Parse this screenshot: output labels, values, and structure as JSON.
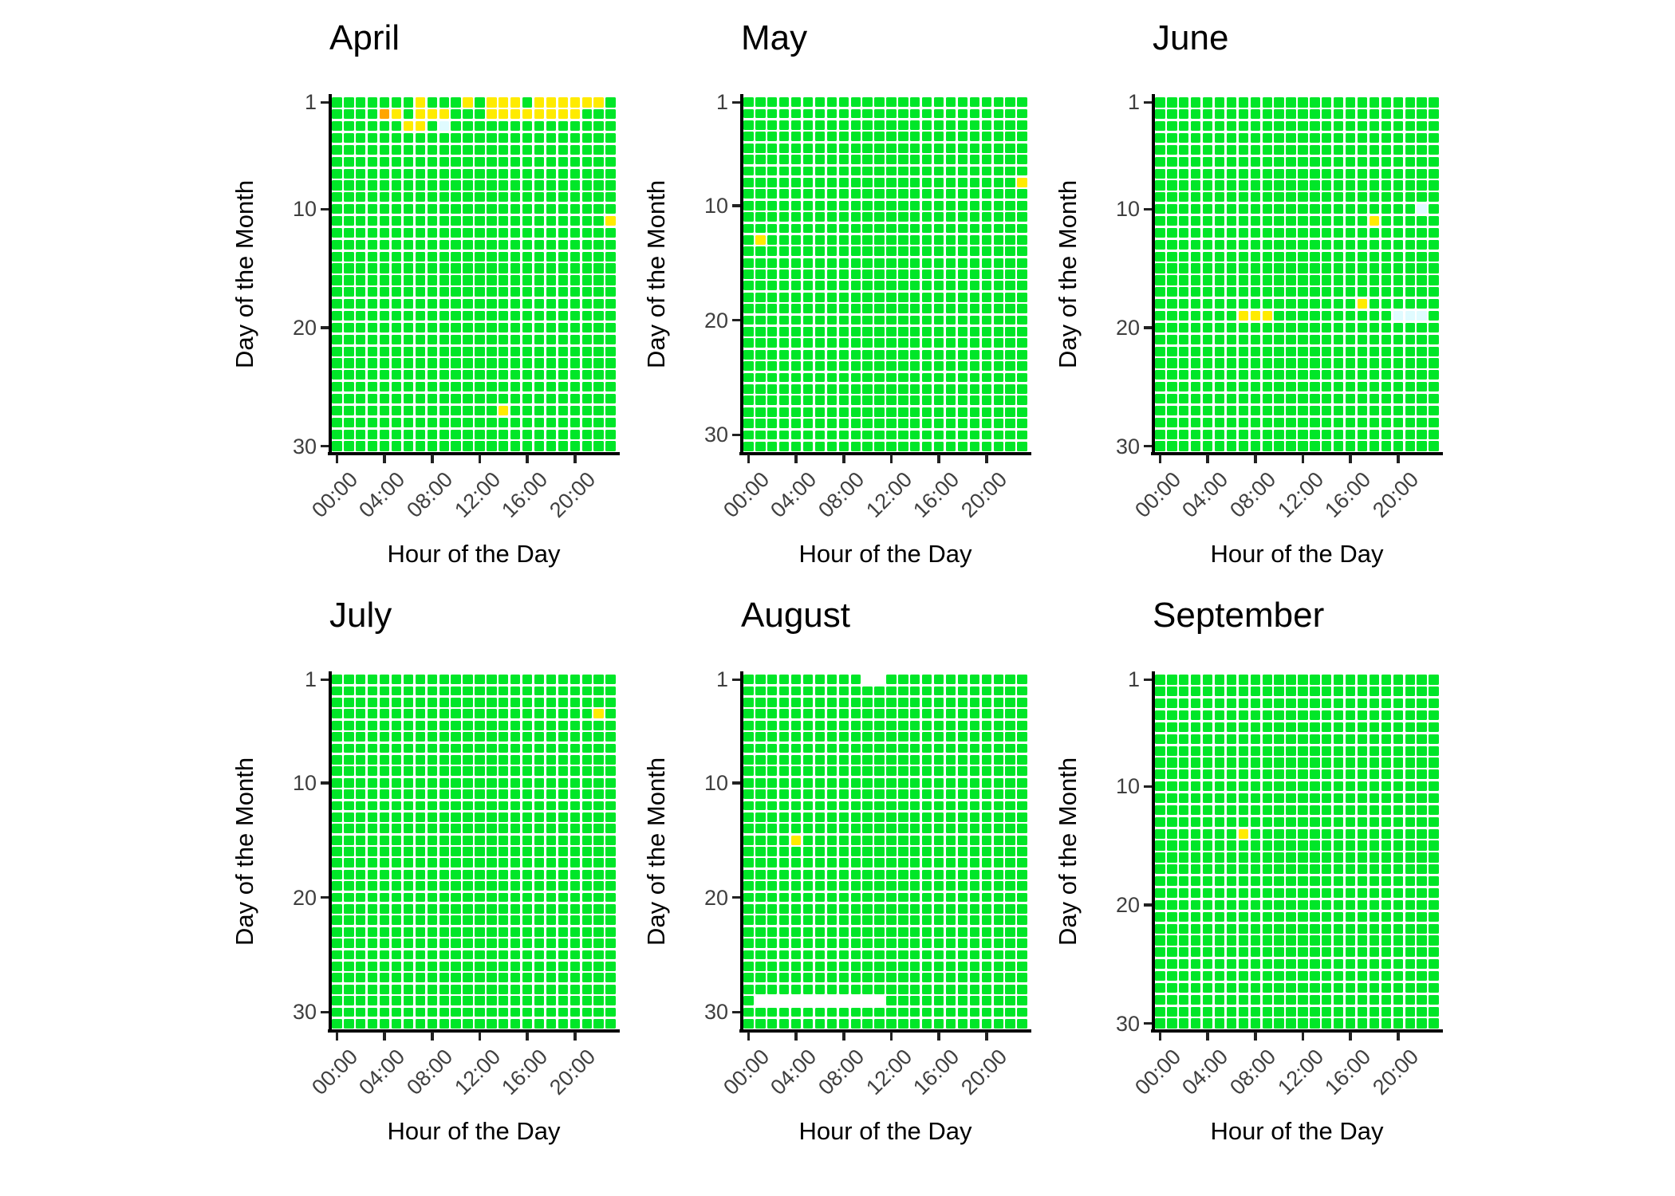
{
  "labels": {
    "x_axis_title": "Hour of the Day",
    "y_axis_title": "Day of the Month"
  },
  "axes": {
    "x_tick_hours": [
      0,
      4,
      8,
      12,
      16,
      20
    ],
    "x_tick_labels": [
      "00:00",
      "04:00",
      "08:00",
      "12:00",
      "16:00",
      "20:00"
    ],
    "y_tick_days": [
      1,
      10,
      20,
      30
    ]
  },
  "colors": {
    "ok": "#00E628",
    "warn": "#FFEB00",
    "alert": "#FFA500",
    "faint": "#E0FBFF"
  },
  "chart_data": {
    "type": "heatmap",
    "x_unit": "hour of day (0-23)",
    "y_unit": "day of month (1 at top)",
    "default_state": "ok",
    "legend": "none",
    "months": [
      {
        "name": "April",
        "days": 30,
        "cells": [
          {
            "day": 1,
            "color": "warn",
            "hours": [
              7,
              11,
              13,
              14,
              15,
              17,
              18,
              19,
              20,
              21,
              22
            ]
          },
          {
            "day": 2,
            "color": "alert",
            "hours": [
              4
            ]
          },
          {
            "day": 2,
            "color": "warn",
            "hours": [
              5,
              7,
              8,
              9,
              13,
              14,
              15,
              16,
              17,
              18,
              19,
              20
            ]
          },
          {
            "day": 3,
            "color": "warn",
            "hours": [
              6,
              7
            ]
          },
          {
            "day": 3,
            "color": "faint",
            "hours": [
              9
            ]
          },
          {
            "day": 11,
            "color": "warn",
            "hours": [
              23
            ]
          },
          {
            "day": 27,
            "color": "warn",
            "hours": [
              14
            ]
          }
        ],
        "missing": []
      },
      {
        "name": "May",
        "days": 31,
        "cells": [
          {
            "day": 8,
            "color": "warn",
            "hours": [
              23
            ]
          },
          {
            "day": 13,
            "color": "warn",
            "hours": [
              1
            ]
          }
        ],
        "missing": []
      },
      {
        "name": "June",
        "days": 30,
        "cells": [
          {
            "day": 10,
            "color": "faint",
            "hours": [
              22
            ]
          },
          {
            "day": 11,
            "color": "warn",
            "hours": [
              18
            ]
          },
          {
            "day": 18,
            "color": "warn",
            "hours": [
              17
            ]
          },
          {
            "day": 19,
            "color": "warn",
            "hours": [
              7,
              8,
              9
            ]
          },
          {
            "day": 19,
            "color": "faint",
            "hours": [
              20,
              21,
              22
            ]
          }
        ],
        "missing": []
      },
      {
        "name": "July",
        "days": 31,
        "cells": [
          {
            "day": 4,
            "color": "warn",
            "hours": [
              22
            ]
          }
        ],
        "missing": []
      },
      {
        "name": "August",
        "days": 31,
        "cells": [
          {
            "day": 15,
            "color": "warn",
            "hours": [
              4
            ]
          }
        ],
        "missing": [
          {
            "day": 1,
            "hours": [
              10,
              11
            ]
          },
          {
            "day": 29,
            "hours": [
              1,
              2,
              3,
              4,
              5,
              6,
              7,
              8,
              9,
              10,
              11
            ]
          }
        ]
      },
      {
        "name": "September",
        "days": 30,
        "cells": [
          {
            "day": 14,
            "color": "warn",
            "hours": [
              7
            ]
          }
        ],
        "missing": []
      }
    ]
  }
}
